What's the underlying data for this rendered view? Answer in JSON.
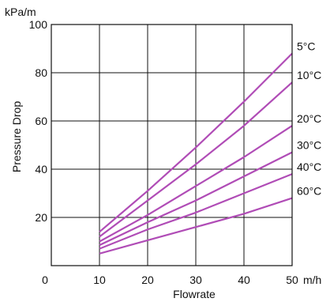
{
  "chart_data": {
    "type": "line",
    "title": "",
    "xlabel": "Flowrate",
    "ylabel": "Pressure Drop",
    "x_unit": "m/h",
    "y_unit": "kPa/m",
    "xlim": [
      0,
      50
    ],
    "ylim": [
      0,
      100
    ],
    "x_ticks": [
      0,
      10,
      20,
      30,
      40,
      50
    ],
    "y_ticks": [
      20,
      40,
      60,
      80,
      100
    ],
    "grid": true,
    "legend": "labels at line ends, right side",
    "line_color": "#b04cb6",
    "series": [
      {
        "name": "5°C",
        "x": [
          10,
          20,
          30,
          40,
          50
        ],
        "y": [
          14,
          31,
          49,
          68,
          88
        ]
      },
      {
        "name": "10°C",
        "x": [
          10,
          20,
          30,
          40,
          50
        ],
        "y": [
          12,
          27,
          42,
          58,
          76
        ]
      },
      {
        "name": "20°C",
        "x": [
          10,
          20,
          30,
          40,
          50
        ],
        "y": [
          10,
          21,
          33,
          45,
          58
        ]
      },
      {
        "name": "30°C",
        "x": [
          10,
          20,
          30,
          40,
          50
        ],
        "y": [
          8.5,
          18,
          27,
          37,
          47
        ]
      },
      {
        "name": "40°C",
        "x": [
          10,
          20,
          30,
          40,
          50
        ],
        "y": [
          7,
          15,
          22,
          30,
          38
        ]
      },
      {
        "name": "60°C",
        "x": [
          10,
          20,
          30,
          40,
          50
        ],
        "y": [
          5,
          10.5,
          16,
          21.5,
          28
        ]
      }
    ]
  }
}
